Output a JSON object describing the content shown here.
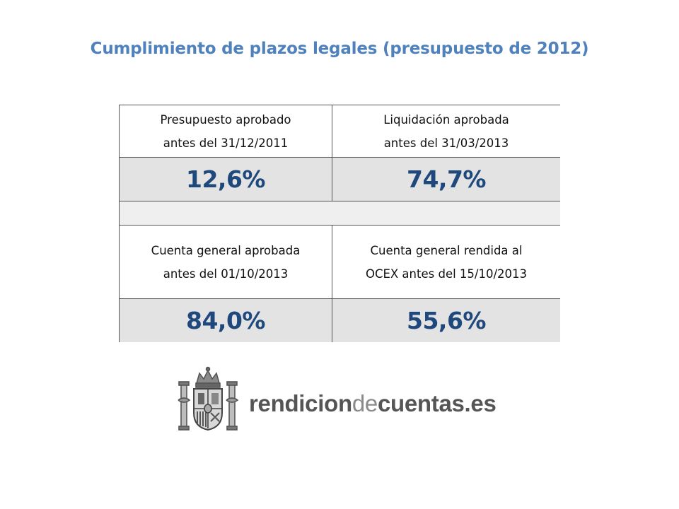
{
  "title": "Cumplimiento de plazos legales (presupuesto de 2012)",
  "table": {
    "row1": {
      "left_label": "Presupuesto aprobado\nantes del 31/12/2011",
      "right_label": "Liquidación aprobada\nantes del 31/03/2013"
    },
    "row2": {
      "left_value": "12,6%",
      "right_value": "74,7%"
    },
    "row3": {
      "left_label": "Cuenta general aprobada\nantes del 01/10/2013",
      "right_label": "Cuenta general rendida al\nOCEX antes del 15/10/2013"
    },
    "row4": {
      "left_value": "84,0%",
      "right_value": "55,6%"
    }
  },
  "logo": {
    "part1": "rendicion",
    "part2": "de",
    "part3": "cuentas.es"
  },
  "colors": {
    "title": "#4f81bd",
    "value_text": "#1f497d",
    "value_fill": "#e3e3e3"
  }
}
